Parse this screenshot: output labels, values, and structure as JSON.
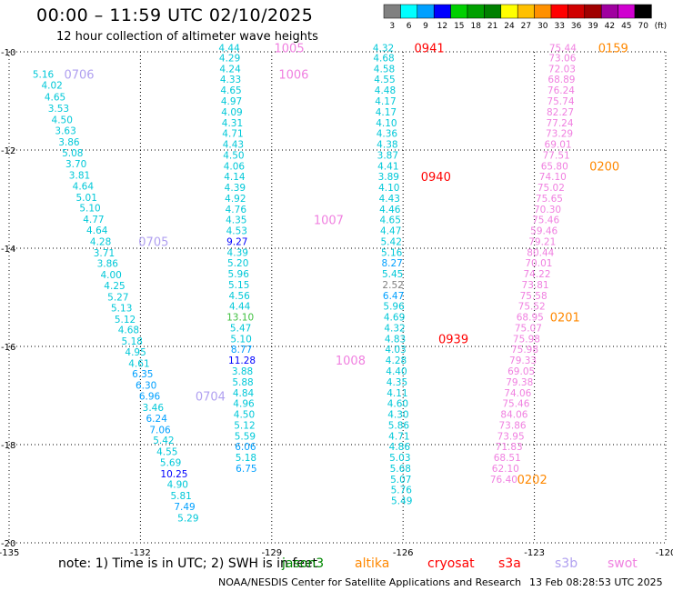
{
  "title": "00:00 – 11:59 UTC 02/10/2025",
  "subtitle": "12 hour collection of altimeter wave heights",
  "note": "note: 1) Time is in UTC; 2) SWH is in feet",
  "credit": "NOAA/NESDIS Center for Satellite Applications and Research",
  "timestamp": "13 Feb 08:28:53 UTC 2025",
  "missions": [
    {
      "name": "jason3",
      "color": "#008800"
    },
    {
      "name": "altika",
      "color": "#ff8800"
    },
    {
      "name": "cryosat",
      "color": "#ff0000"
    },
    {
      "name": "s3a",
      "color": "#ff0000"
    },
    {
      "name": "s3b",
      "color": "#b0a0f0"
    },
    {
      "name": "swot",
      "color": "#f080e0"
    }
  ],
  "colorbar": {
    "ticks": [
      "3",
      "6",
      "9",
      "12",
      "15",
      "18",
      "21",
      "24",
      "27",
      "30",
      "33",
      "36",
      "39",
      "42",
      "45",
      "70",
      "(ft)"
    ],
    "colors": [
      "#808080",
      "#00ffff",
      "#00a0ff",
      "#0000ff",
      "#00d000",
      "#00a000",
      "#008000",
      "#ffff00",
      "#ffc000",
      "#ff9000",
      "#ff0000",
      "#d00000",
      "#a00000",
      "#a000a0",
      "#d000d0",
      "#000000"
    ]
  },
  "chart_data": {
    "type": "scatter",
    "title": "00:00 – 11:59 UTC 02/10/2025",
    "subtitle": "12 hour collection of altimeter wave heights",
    "xlim": [
      -135,
      -120
    ],
    "ylim": [
      -20,
      -10
    ],
    "xticks": [
      "-135",
      "-132",
      "-129",
      "-126",
      "-123",
      "-120"
    ],
    "yticks": [
      "-10",
      "-12",
      "-14",
      "-16",
      "-18",
      "-20"
    ],
    "grid": true,
    "series": [
      {
        "name": "s3b",
        "color": "#b0a0f0",
        "points": [
          [
            -134.22,
            -10.45,
            "5.16"
          ],
          [
            -134.02,
            -10.68,
            "4.02"
          ],
          [
            -133.95,
            -10.92,
            "4.65"
          ],
          [
            -133.87,
            -11.15,
            "3.53"
          ],
          [
            -133.79,
            -11.38,
            "4.50"
          ],
          [
            -133.71,
            -11.6,
            "3.63"
          ],
          [
            -133.63,
            -11.83,
            "3.86"
          ],
          [
            -133.55,
            -12.06,
            "5.08"
          ],
          [
            -133.47,
            -12.28,
            "3.70"
          ],
          [
            -133.39,
            -12.51,
            "3.81"
          ],
          [
            -133.31,
            -12.73,
            "4.64"
          ],
          [
            -133.23,
            -12.96,
            "5.01"
          ],
          [
            -133.15,
            -13.18,
            "5.10"
          ],
          [
            -133.07,
            -13.41,
            "4.77"
          ],
          [
            -132.99,
            -13.63,
            "4.64"
          ],
          [
            -132.91,
            -13.86,
            "4.28"
          ],
          [
            -132.83,
            -14.09,
            "3.71"
          ],
          [
            -132.75,
            -14.31,
            "3.86"
          ],
          [
            -132.67,
            -14.54,
            "4.00"
          ],
          [
            -132.59,
            -14.76,
            "4.25"
          ],
          [
            -132.51,
            -14.99,
            "5.27"
          ],
          [
            -132.43,
            -15.21,
            "5.13"
          ],
          [
            -132.35,
            -15.44,
            "5.12"
          ],
          [
            -132.27,
            -15.66,
            "4.68"
          ],
          [
            -132.19,
            -15.89,
            "5.18"
          ],
          [
            -132.11,
            -16.11,
            "4.95"
          ],
          [
            -132.03,
            -16.34,
            "4.61"
          ],
          [
            -131.95,
            -16.56,
            "6.35"
          ],
          [
            -131.87,
            -16.79,
            "6.30"
          ],
          [
            -131.79,
            -17.01,
            "6.96"
          ],
          [
            -131.71,
            -17.24,
            "3.46"
          ],
          [
            -131.63,
            -17.46,
            "6.24"
          ],
          [
            -131.55,
            -17.69,
            "7.06"
          ],
          [
            -131.47,
            -17.91,
            "5.42"
          ],
          [
            -131.39,
            -18.14,
            "4.55"
          ],
          [
            -131.31,
            -18.36,
            "5.69"
          ],
          [
            -131.23,
            -18.59,
            "10.25"
          ],
          [
            -131.15,
            -18.81,
            "4.90"
          ],
          [
            -131.07,
            -19.04,
            "5.81"
          ],
          [
            -130.99,
            -19.26,
            "7.49"
          ],
          [
            -130.91,
            -19.49,
            "5.29"
          ]
        ]
      },
      {
        "name": "s3b",
        "color": "#b0a0f0",
        "points": [
          [
            -129.97,
            -9.92,
            "4.44"
          ],
          [
            -129.96,
            -10.12,
            "4.29"
          ],
          [
            -129.95,
            -10.34,
            "4.24"
          ],
          [
            -129.94,
            -10.56,
            "4.33"
          ],
          [
            -129.93,
            -10.78,
            "4.65"
          ],
          [
            -129.92,
            -11.0,
            "4.97"
          ],
          [
            -129.91,
            -11.22,
            "4.09"
          ],
          [
            -129.9,
            -11.44,
            "4.31"
          ],
          [
            -129.89,
            -11.66,
            "4.71"
          ],
          [
            -129.88,
            -11.88,
            "4.43"
          ],
          [
            -129.87,
            -12.1,
            "4.50"
          ],
          [
            -129.86,
            -12.32,
            "4.06"
          ],
          [
            -129.85,
            -12.54,
            "4.14"
          ],
          [
            -129.84,
            -12.76,
            "4.39"
          ],
          [
            -129.83,
            -12.98,
            "4.92"
          ],
          [
            -129.82,
            -13.2,
            "4.76"
          ],
          [
            -129.81,
            -13.42,
            "4.35"
          ],
          [
            -129.8,
            -13.64,
            "4.53"
          ],
          [
            -129.79,
            -13.86,
            "9.27"
          ],
          [
            -129.78,
            -14.08,
            "4.39"
          ],
          [
            -129.77,
            -14.3,
            "5.20"
          ],
          [
            -129.76,
            -14.52,
            "5.96"
          ],
          [
            -129.75,
            -14.74,
            "5.15"
          ],
          [
            -129.74,
            -14.96,
            "4.56"
          ],
          [
            -129.73,
            -15.18,
            "4.44"
          ],
          [
            -129.72,
            -15.4,
            "13.10"
          ],
          [
            -129.71,
            -15.62,
            "5.47"
          ],
          [
            -129.7,
            -15.84,
            "5.10"
          ],
          [
            -129.69,
            -16.06,
            "8.77"
          ],
          [
            -129.68,
            -16.28,
            "11.28"
          ],
          [
            -129.67,
            -16.5,
            "3.88"
          ],
          [
            -129.66,
            -16.72,
            "5.88"
          ],
          [
            -129.65,
            -16.94,
            "4.84"
          ],
          [
            -129.64,
            -17.16,
            "4.96"
          ],
          [
            -129.63,
            -17.38,
            "4.50"
          ],
          [
            -129.62,
            -17.6,
            "5.12"
          ],
          [
            -129.61,
            -17.82,
            "5.59"
          ],
          [
            -129.6,
            -18.04,
            "6.06"
          ],
          [
            -129.59,
            -18.26,
            "5.18"
          ],
          [
            -129.58,
            -18.48,
            "6.75"
          ]
        ]
      },
      {
        "name": "cryosat",
        "color": "#ff0000",
        "points": [
          [
            -126.45,
            -9.92,
            "4.32"
          ],
          [
            -126.44,
            -10.12,
            "4.68"
          ],
          [
            -126.43,
            -10.34,
            "4.58"
          ],
          [
            -126.42,
            -10.56,
            "4.55"
          ],
          [
            -126.41,
            -10.78,
            "4.48"
          ],
          [
            -126.4,
            -11.0,
            "4.17"
          ],
          [
            -126.39,
            -11.22,
            "4.17"
          ],
          [
            -126.38,
            -11.44,
            "4.10"
          ],
          [
            -126.37,
            -11.66,
            "4.36"
          ],
          [
            -126.36,
            -11.88,
            "4.38"
          ],
          [
            -126.35,
            -12.1,
            "3.87"
          ],
          [
            -126.34,
            -12.32,
            "4.41"
          ],
          [
            -126.33,
            -12.54,
            "3.89"
          ],
          [
            -126.32,
            -12.76,
            "4.10"
          ],
          [
            -126.31,
            -12.98,
            "4.43"
          ],
          [
            -126.3,
            -13.2,
            "4.46"
          ],
          [
            -126.29,
            -13.42,
            "4.65"
          ],
          [
            -126.28,
            -13.64,
            "4.47"
          ],
          [
            -126.27,
            -13.86,
            "5.42"
          ],
          [
            -126.26,
            -14.08,
            "5.16"
          ],
          [
            -126.25,
            -14.3,
            "8.27"
          ],
          [
            -126.24,
            -14.52,
            "5.45"
          ],
          [
            -126.23,
            -14.74,
            "2.52"
          ],
          [
            -126.22,
            -14.96,
            "6.47"
          ],
          [
            -126.21,
            -15.18,
            "5.96"
          ],
          [
            -126.2,
            -15.4,
            "4.69"
          ],
          [
            -126.19,
            -15.62,
            "4.32"
          ],
          [
            -126.18,
            -15.84,
            "4.83"
          ],
          [
            -126.17,
            -16.06,
            "4.03"
          ],
          [
            -126.16,
            -16.28,
            "4.28"
          ],
          [
            -126.15,
            -16.5,
            "4.40"
          ],
          [
            -126.14,
            -16.72,
            "4.35"
          ],
          [
            -126.13,
            -16.94,
            "4.11"
          ],
          [
            -126.12,
            -17.16,
            "4.60"
          ],
          [
            -126.11,
            -17.38,
            "4.30"
          ],
          [
            -126.1,
            -17.6,
            "5.86"
          ],
          [
            -126.09,
            -17.82,
            "4.71"
          ],
          [
            -126.08,
            -18.04,
            "4.86"
          ],
          [
            -126.07,
            -18.26,
            "5.03"
          ],
          [
            -126.06,
            -18.48,
            "5.68"
          ],
          [
            -126.05,
            -18.7,
            "5.07"
          ],
          [
            -126.04,
            -18.92,
            "5.76"
          ],
          [
            -126.03,
            -19.14,
            "5.49"
          ]
        ]
      },
      {
        "name": "swot",
        "color": "#f080e0",
        "points": [
          [
            -122.35,
            -9.92,
            "75.44"
          ],
          [
            -122.36,
            -10.12,
            "73.06"
          ],
          [
            -122.37,
            -10.34,
            "72.03"
          ],
          [
            -122.38,
            -10.56,
            "68.89"
          ],
          [
            -122.39,
            -10.78,
            "76.24"
          ],
          [
            -122.4,
            -11.0,
            "75.74"
          ],
          [
            -122.41,
            -11.22,
            "82.27"
          ],
          [
            -122.42,
            -11.44,
            "77.24"
          ],
          [
            -122.43,
            -11.66,
            "73.29"
          ],
          [
            -122.46,
            -11.88,
            "69.01"
          ],
          [
            -122.5,
            -12.1,
            "77.51"
          ],
          [
            -122.54,
            -12.32,
            "65.80"
          ],
          [
            -122.58,
            -12.54,
            "74.10"
          ],
          [
            -122.62,
            -12.76,
            "75.02"
          ],
          [
            -122.66,
            -12.98,
            "75.65"
          ],
          [
            -122.7,
            -13.2,
            "70.30"
          ],
          [
            -122.74,
            -13.42,
            "75.46"
          ],
          [
            -122.78,
            -13.64,
            "59.46"
          ],
          [
            -122.82,
            -13.86,
            "79.21"
          ],
          [
            -122.86,
            -14.08,
            "80.44"
          ],
          [
            -122.9,
            -14.3,
            "70.01"
          ],
          [
            -122.94,
            -14.52,
            "74.22"
          ],
          [
            -122.98,
            -14.74,
            "73.81"
          ],
          [
            -123.02,
            -14.96,
            "75.58"
          ],
          [
            -123.06,
            -15.18,
            "75.52"
          ],
          [
            -123.1,
            -15.4,
            "68.95"
          ],
          [
            -123.14,
            -15.62,
            "75.07"
          ],
          [
            -123.18,
            -15.84,
            "75.98"
          ],
          [
            -123.22,
            -16.06,
            "75.98"
          ],
          [
            -123.26,
            -16.28,
            "79.33"
          ],
          [
            -123.3,
            -16.5,
            "69.05"
          ],
          [
            -123.34,
            -16.72,
            "79.38"
          ],
          [
            -123.38,
            -16.94,
            "74.06"
          ],
          [
            -123.42,
            -17.16,
            "75.46"
          ],
          [
            -123.46,
            -17.38,
            "84.06"
          ],
          [
            -123.5,
            -17.6,
            "73.86"
          ],
          [
            -123.54,
            -17.82,
            "73.95"
          ],
          [
            -123.58,
            -18.04,
            "71.83"
          ],
          [
            -123.62,
            -18.26,
            "68.51"
          ],
          [
            -123.66,
            -18.48,
            "62.10"
          ],
          [
            -123.7,
            -18.7,
            "76.40"
          ]
        ]
      }
    ],
    "time_labels": [
      {
        "text": "0706",
        "color": "#b0a0f0",
        "x": -133.4,
        "y": -10.45
      },
      {
        "text": "0705",
        "color": "#b0a0f0",
        "x": -131.7,
        "y": -13.86
      },
      {
        "text": "0704",
        "color": "#b0a0f0",
        "x": -130.4,
        "y": -17.01
      },
      {
        "text": "1005",
        "color": "#f080e0",
        "x": -128.6,
        "y": -9.92
      },
      {
        "text": "1006",
        "color": "#f080e0",
        "x": -128.5,
        "y": -10.45
      },
      {
        "text": "1007",
        "color": "#f080e0",
        "x": -127.7,
        "y": -13.42
      },
      {
        "text": "1008",
        "color": "#f080e0",
        "x": -127.2,
        "y": -16.28
      },
      {
        "text": "0941",
        "color": "#ff0000",
        "x": -125.4,
        "y": -9.92
      },
      {
        "text": "0940",
        "color": "#ff0000",
        "x": -125.25,
        "y": -12.54
      },
      {
        "text": "0939",
        "color": "#ff0000",
        "x": -124.85,
        "y": -15.84
      },
      {
        "text": "0159",
        "color": "#ff8800",
        "x": -121.2,
        "y": -9.92
      },
      {
        "text": "0200",
        "color": "#ff8800",
        "x": -121.4,
        "y": -12.32
      },
      {
        "text": "0201",
        "color": "#ff8800",
        "x": -122.3,
        "y": -15.4
      },
      {
        "text": "0202",
        "color": "#ff8800",
        "x": -123.05,
        "y": -18.7
      }
    ]
  }
}
